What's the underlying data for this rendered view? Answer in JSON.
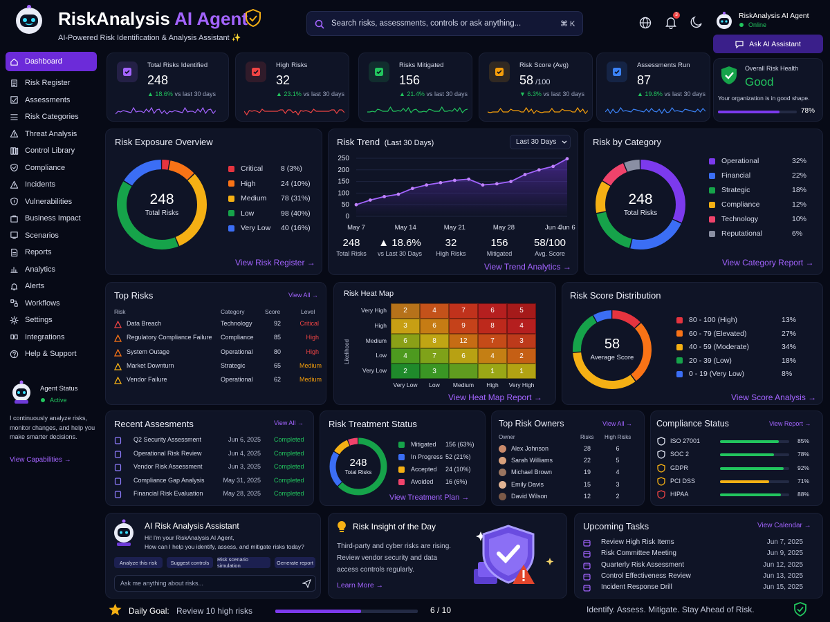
{
  "app": {
    "title_main": "RiskAnalysis",
    "title_accent": "AI Agent",
    "subtitle": "AI-Powered Risk Identification & Analysis Assistant ✨"
  },
  "search": {
    "placeholder": "Search risks, assessments, controls or ask anything...",
    "shortcut": "⌘ K"
  },
  "header": {
    "notifications": "3",
    "user_name": "RiskAnalysis AI Agent",
    "user_status": "Online",
    "ask_button": "Ask AI Assistant"
  },
  "sidebar": {
    "items": [
      {
        "label": "Dashboard",
        "icon": "home-icon"
      },
      {
        "label": "Risk Register",
        "icon": "register-icon"
      },
      {
        "label": "Assessments",
        "icon": "assessment-icon"
      },
      {
        "label": "Risk Categories",
        "icon": "category-icon"
      },
      {
        "label": "Threat Analysis",
        "icon": "threat-icon"
      },
      {
        "label": "Control Library",
        "icon": "library-icon"
      },
      {
        "label": "Compliance",
        "icon": "compliance-icon"
      },
      {
        "label": "Incidents",
        "icon": "incident-icon"
      },
      {
        "label": "Vulnerabilities",
        "icon": "vulnerability-icon"
      },
      {
        "label": "Business Impact",
        "icon": "impact-icon"
      },
      {
        "label": "Scenarios",
        "icon": "scenario-icon"
      },
      {
        "label": "Reports",
        "icon": "report-icon"
      },
      {
        "label": "Analytics",
        "icon": "analytics-icon"
      },
      {
        "label": "Alerts",
        "icon": "alert-icon"
      },
      {
        "label": "Workflows",
        "icon": "workflow-icon"
      },
      {
        "label": "Settings",
        "icon": "gear-icon"
      },
      {
        "label": "Integrations",
        "icon": "integration-icon"
      },
      {
        "label": "Help & Support",
        "icon": "help-icon"
      }
    ],
    "agent_title": "Agent Status",
    "agent_status": "Active",
    "agent_desc": "I continuously analyze risks, monitor changes, and help you make smarter decisions.",
    "capabilities_link": "View Capabilities →"
  },
  "kpis": [
    {
      "label": "Total Risks Identified",
      "value": "248",
      "unit": "",
      "delta": "▲ 18.6%",
      "delta_suffix": " vs last 30 days",
      "color": "#a364ff"
    },
    {
      "label": "High Risks",
      "value": "32",
      "unit": "",
      "delta": "▲ 23.1%",
      "delta_suffix": " vs last 30 days",
      "color": "#ef4444"
    },
    {
      "label": "Risks Mitigated",
      "value": "156",
      "unit": "",
      "delta": "▲ 21.4%",
      "delta_suffix": " vs last 30 days",
      "color": "#22c55e"
    },
    {
      "label": "Risk Score (Avg)",
      "value": "58",
      "unit": " /100",
      "delta": "▼ 6.3%",
      "delta_suffix": " vs last 30 days",
      "color": "#f59e0b"
    },
    {
      "label": "Assessments Run",
      "value": "87",
      "unit": "",
      "delta": "▲ 19.8%",
      "delta_suffix": " vs last 30 days",
      "color": "#3b82f6"
    }
  ],
  "health": {
    "label": "Overall Risk Health",
    "value": "Good",
    "desc": "Your organization is in good shape.",
    "percent": "78%",
    "fraction": 0.78
  },
  "exposure": {
    "title": "Risk Exposure Overview",
    "center_value": "248",
    "center_label": "Total Risks",
    "items": [
      {
        "label": "Critical",
        "value": "8 (3%)",
        "color": "#e5343f",
        "pct": 3
      },
      {
        "label": "High",
        "value": "24 (10%)",
        "color": "#f97316",
        "pct": 10
      },
      {
        "label": "Medium",
        "value": "78 (31%)",
        "color": "#f5b014",
        "pct": 31
      },
      {
        "label": "Low",
        "value": "98 (40%)",
        "color": "#16a34a",
        "pct": 40
      },
      {
        "label": "Very Low",
        "value": "40 (16%)",
        "color": "#3b6ef5",
        "pct": 16
      }
    ],
    "link": "View Risk Register →"
  },
  "trend": {
    "title": "Risk Trend",
    "subtitle": "(Last 30 Days)",
    "dropdown": "Last 30 Days",
    "chart_data": {
      "type": "line",
      "x": [
        "May 7",
        "May 9",
        "May 11",
        "May 13",
        "May 15",
        "May 17",
        "May 19",
        "May 21",
        "May 23",
        "May 25",
        "May 27",
        "May 29",
        "May 31",
        "Jun 2",
        "Jun 4",
        "Jun 6"
      ],
      "x_ticks": [
        "May 7",
        "May 14",
        "May 21",
        "May 28",
        "Jun 4",
        "Jun 6"
      ],
      "values": [
        50,
        70,
        85,
        95,
        120,
        135,
        145,
        155,
        160,
        135,
        140,
        150,
        180,
        200,
        215,
        248
      ],
      "ylim": [
        0,
        250
      ],
      "y_ticks": [
        "250",
        "200",
        "150",
        "100",
        "50",
        "0"
      ]
    },
    "stats": [
      {
        "value": "248",
        "label": "Total Risks"
      },
      {
        "value": "▲ 18.6%",
        "label": "vs Last 30 Days"
      },
      {
        "value": "32",
        "label": "High Risks"
      },
      {
        "value": "156",
        "label": "Mitigated"
      },
      {
        "value": "58/100",
        "label": "Avg. Score"
      }
    ],
    "link": "View Trend Analytics →"
  },
  "category": {
    "title": "Risk by Category",
    "center_value": "248",
    "center_label": "Total Risks",
    "items": [
      {
        "label": "Operational",
        "value": "32%",
        "color": "#7c3aed",
        "pct": 32
      },
      {
        "label": "Financial",
        "value": "22%",
        "color": "#3b6ef5",
        "pct": 22
      },
      {
        "label": "Strategic",
        "value": "18%",
        "color": "#16a34a",
        "pct": 18
      },
      {
        "label": "Compliance",
        "value": "12%",
        "color": "#f5b014",
        "pct": 12
      },
      {
        "label": "Technology",
        "value": "10%",
        "color": "#f0436b",
        "pct": 10
      },
      {
        "label": "Reputational",
        "value": "6%",
        "color": "#8a8fa3",
        "pct": 6
      }
    ],
    "link": "View Category Report →"
  },
  "top_risks": {
    "title": "Top Risks",
    "link": "View All →",
    "headers": [
      "Risk",
      "Category",
      "Score",
      "Level"
    ],
    "rows": [
      {
        "name": "Data Breach",
        "category": "Technology",
        "score": "92",
        "level": "Critical",
        "color": "#ef4444"
      },
      {
        "name": "Regulatory Compliance Failure",
        "category": "Compliance",
        "score": "85",
        "level": "High",
        "color": "#ef4444"
      },
      {
        "name": "System Outage",
        "category": "Operational",
        "score": "80",
        "level": "High",
        "color": "#ef4444"
      },
      {
        "name": "Market Downturn",
        "category": "Strategic",
        "score": "65",
        "level": "Medium",
        "color": "#f59e0b"
      },
      {
        "name": "Vendor Failure",
        "category": "Operational",
        "score": "62",
        "level": "Medium",
        "color": "#f59e0b"
      }
    ]
  },
  "heatmap": {
    "title": "Risk Heat Map",
    "ylabel": "Likelihood",
    "rows": [
      "Very High",
      "High",
      "Medium",
      "Low",
      "Very Low"
    ],
    "cols": [
      "Very Low",
      "Low",
      "Medium",
      "High",
      "Very High"
    ],
    "values": [
      [
        "2",
        "4",
        "7",
        "6",
        "5"
      ],
      [
        "3",
        "6",
        "9",
        "8",
        "4"
      ],
      [
        "6",
        "8",
        "12",
        "7",
        "3"
      ],
      [
        "4",
        "7",
        "6",
        "4",
        "2"
      ],
      [
        "2",
        "3",
        "",
        "1",
        "1"
      ]
    ],
    "colors": [
      [
        "#b6721a",
        "#c4521a",
        "#c0321c",
        "#b51f1f",
        "#a51a1a"
      ],
      [
        "#c79f14",
        "#c67c14",
        "#c5421a",
        "#bd291c",
        "#b51f1f"
      ],
      [
        "#8aa017",
        "#c0a514",
        "#c66c14",
        "#c54b18",
        "#bd3a1b"
      ],
      [
        "#4d9a1f",
        "#7fa219",
        "#b8a113",
        "#c47f14",
        "#c55f15"
      ],
      [
        "#1f8a2b",
        "#3a9624",
        "#609c1f",
        "#9aa716",
        "#b2a213"
      ]
    ],
    "link": "View Heat Map Report →"
  },
  "distribution": {
    "title": "Risk Score Distribution",
    "center_value": "58",
    "center_label": "Average Score",
    "items": [
      {
        "label": "80 - 100 (High)",
        "value": "13%",
        "color": "#e5343f",
        "pct": 13
      },
      {
        "label": "60 - 79 (Elevated)",
        "value": "27%",
        "color": "#f97316",
        "pct": 27
      },
      {
        "label": "40 - 59 (Moderate)",
        "value": "34%",
        "color": "#f5b014",
        "pct": 34
      },
      {
        "label": "20 - 39 (Low)",
        "value": "18%",
        "color": "#16a34a",
        "pct": 18
      },
      {
        "label": "0 - 19 (Very Low)",
        "value": "8%",
        "color": "#3b6ef5",
        "pct": 8
      }
    ],
    "link": "View Score Analysis →"
  },
  "recent": {
    "title": "Recent Assesments",
    "link": "View All →",
    "rows": [
      {
        "name": "Q2 Security Assessment",
        "date": "Jun 6, 2025",
        "status": "Completed"
      },
      {
        "name": "Operational Risk Review",
        "date": "Jun 4, 2025",
        "status": "Completed"
      },
      {
        "name": "Vendor Risk Assessment",
        "date": "Jun 3, 2025",
        "status": "Completed"
      },
      {
        "name": "Compliance Gap Analysis",
        "date": "May 31, 2025",
        "status": "Completed"
      },
      {
        "name": "Financial Risk Evaluation",
        "date": "May 28, 2025",
        "status": "Completed"
      }
    ]
  },
  "treatment": {
    "title": "Risk Treatment Status",
    "center_value": "248",
    "center_label": "Total Risks",
    "items": [
      {
        "label": "Mitigated",
        "value": "156 (63%)",
        "color": "#16a34a",
        "pct": 63
      },
      {
        "label": "In Progress",
        "value": "52 (21%)",
        "color": "#3b6ef5",
        "pct": 21
      },
      {
        "label": "Accepted",
        "value": "24 (10%)",
        "color": "#f5b014",
        "pct": 10
      },
      {
        "label": "Avoided",
        "value": "16 (6%)",
        "color": "#f0436b",
        "pct": 6
      }
    ],
    "link": "View Treatment Plan →"
  },
  "owners": {
    "title": "Top Risk Owners",
    "link": "View All →",
    "headers": [
      "Owner",
      "Risks",
      "High Risks"
    ],
    "rows": [
      {
        "name": "Alex Johnson",
        "risks": "28",
        "high": "6"
      },
      {
        "name": "Sarah Williams",
        "risks": "22",
        "high": "5"
      },
      {
        "name": "Michael Brown",
        "risks": "19",
        "high": "4"
      },
      {
        "name": "Emily Davis",
        "risks": "15",
        "high": "3"
      },
      {
        "name": "David Wilson",
        "risks": "12",
        "high": "2"
      }
    ]
  },
  "compliance": {
    "title": "Compliance Status",
    "link": "View Report →",
    "rows": [
      {
        "name": "ISO 27001",
        "value": "85%",
        "pct": 85,
        "color": "#22c55e"
      },
      {
        "name": "SOC 2",
        "value": "78%",
        "pct": 78,
        "color": "#22c55e"
      },
      {
        "name": "GDPR",
        "value": "92%",
        "pct": 92,
        "color": "#22c55e"
      },
      {
        "name": "PCI DSS",
        "value": "71%",
        "pct": 71,
        "color": "#f5b014"
      },
      {
        "name": "HIPAA",
        "value": "88%",
        "pct": 88,
        "color": "#22c55e"
      }
    ]
  },
  "assistant": {
    "title": "AI Risk Analysis Assistant",
    "greeting": "Hi! I'm your RiskAnalysis AI Agent,",
    "question": "How can I help you identify, assess, and mitigate risks today?",
    "chips": [
      "Analyze this risk",
      "Suggest controls",
      "Risk scenario simulation",
      "Generate report"
    ],
    "input_placeholder": "Ask me anything about risks..."
  },
  "insight": {
    "title": "Risk Insight of the Day",
    "text": "Third-party and cyber risks are rising. Review vendor security and data access controls regularly.",
    "link": "Learn More →"
  },
  "tasks": {
    "title": "Upcoming Tasks",
    "link": "View Calendar →",
    "rows": [
      {
        "name": "Review High Risk Items",
        "date": "Jun 7, 2025"
      },
      {
        "name": "Risk Committee Meeting",
        "date": "Jun 9, 2025"
      },
      {
        "name": "Quarterly Risk Assessment",
        "date": "Jun 12, 2025"
      },
      {
        "name": "Control Effectiveness Review",
        "date": "Jun 13, 2025"
      },
      {
        "name": "Incident Response Drill",
        "date": "Jun 15, 2025"
      }
    ]
  },
  "goal": {
    "label": "Daily Goal:",
    "text": "Review 10 high risks",
    "progress": "6 / 10",
    "fraction": 0.6,
    "tagline": "Identify. Assess. Mitigate. Stay Ahead of Risk."
  }
}
